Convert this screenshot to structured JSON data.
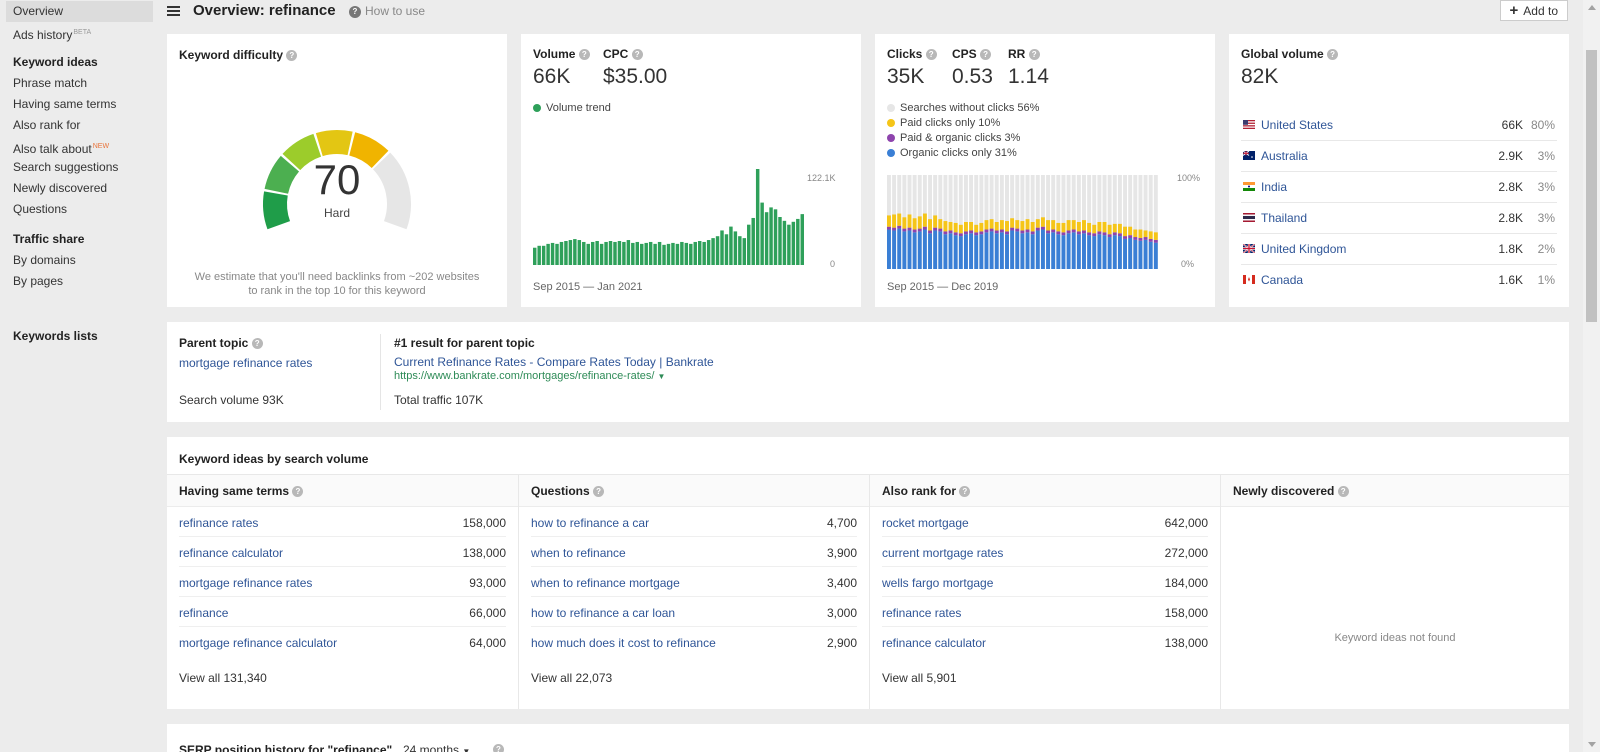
{
  "sidebar": {
    "overview": "Overview",
    "ads_history": "Ads history",
    "ads_history_tag": "BETA",
    "keyword_ideas_head": "Keyword ideas",
    "phrase_match": "Phrase match",
    "having_same_terms": "Having same terms",
    "also_rank_for": "Also rank for",
    "also_talk_about": "Also talk about",
    "also_talk_about_tag": "NEW",
    "search_suggestions": "Search suggestions",
    "newly_discovered": "Newly discovered",
    "questions": "Questions",
    "traffic_share_head": "Traffic share",
    "by_domains": "By domains",
    "by_pages": "By pages",
    "keywords_lists": "Keywords lists"
  },
  "header": {
    "title": "Overview: refinance",
    "help": "How to use",
    "add_to": "Add to"
  },
  "difficulty": {
    "label": "Keyword difficulty",
    "value": "70",
    "rating": "Hard",
    "score_fraction": 0.7,
    "note_line1": "We estimate that you'll need backlinks from ~202 websites",
    "note_line2": "to rank in the top 10 for this keyword"
  },
  "volume": {
    "volume_label": "Volume",
    "volume_value": "66K",
    "cpc_label": "CPC",
    "cpc_value": "$35.00",
    "trend_label": "Volume trend",
    "axis_max": "122.1K",
    "axis_min": "0",
    "date_range": "Sep 2015 — Jan 2021",
    "color": "#2ea05a",
    "trend": [
      0.18,
      0.2,
      0.2,
      0.22,
      0.23,
      0.22,
      0.24,
      0.25,
      0.26,
      0.27,
      0.26,
      0.24,
      0.22,
      0.24,
      0.25,
      0.22,
      0.24,
      0.25,
      0.24,
      0.25,
      0.24,
      0.26,
      0.23,
      0.24,
      0.22,
      0.23,
      0.24,
      0.22,
      0.24,
      0.21,
      0.22,
      0.23,
      0.22,
      0.24,
      0.23,
      0.22,
      0.24,
      0.25,
      0.24,
      0.26,
      0.28,
      0.3,
      0.36,
      0.32,
      0.4,
      0.35,
      0.3,
      0.28,
      0.42,
      0.49,
      1.0,
      0.65,
      0.55,
      0.6,
      0.58,
      0.5,
      0.46,
      0.42,
      0.45,
      0.48,
      0.53
    ]
  },
  "clicks": {
    "clicks_label": "Clicks",
    "clicks_value": "35K",
    "cps_label": "CPS",
    "cps_value": "0.53",
    "rr_label": "RR",
    "rr_value": "1.14",
    "legend": [
      {
        "label": "Searches without clicks 56%",
        "color": "#e6e6e6"
      },
      {
        "label": "Paid clicks only 10%",
        "color": "#f5c518"
      },
      {
        "label": "Paid & organic clicks 3%",
        "color": "#8e44ad"
      },
      {
        "label": "Organic clicks only 31%",
        "color": "#3a7fd5"
      }
    ],
    "axis_max": "100%",
    "axis_min": "0%",
    "date_range": "Sep 2015 — Dec 2019",
    "organic": [
      0.42,
      0.41,
      0.43,
      0.4,
      0.41,
      0.39,
      0.4,
      0.42,
      0.38,
      0.41,
      0.4,
      0.37,
      0.38,
      0.36,
      0.35,
      0.37,
      0.38,
      0.36,
      0.37,
      0.39,
      0.4,
      0.38,
      0.39,
      0.37,
      0.41,
      0.4,
      0.38,
      0.39,
      0.37,
      0.41,
      0.42,
      0.38,
      0.39,
      0.37,
      0.36,
      0.38,
      0.39,
      0.37,
      0.38,
      0.36,
      0.35,
      0.37,
      0.36,
      0.34,
      0.36,
      0.35,
      0.32,
      0.33,
      0.31,
      0.3,
      0.31,
      0.29,
      0.28
    ],
    "paid": [
      0.12,
      0.14,
      0.13,
      0.12,
      0.14,
      0.12,
      0.13,
      0.14,
      0.12,
      0.13,
      0.1,
      0.11,
      0.09,
      0.1,
      0.09,
      0.1,
      0.09,
      0.08,
      0.09,
      0.1,
      0.1,
      0.09,
      0.1,
      0.11,
      0.1,
      0.09,
      0.1,
      0.11,
      0.1,
      0.09,
      0.1,
      0.11,
      0.1,
      0.09,
      0.1,
      0.11,
      0.1,
      0.1,
      0.11,
      0.1,
      0.09,
      0.1,
      0.11,
      0.1,
      0.09,
      0.1,
      0.1,
      0.09,
      0.08,
      0.09,
      0.07,
      0.08,
      0.08
    ],
    "both": [
      0.03,
      0.03,
      0.03,
      0.03,
      0.03,
      0.03,
      0.03,
      0.03,
      0.03,
      0.03,
      0.03,
      0.03,
      0.03,
      0.03,
      0.03,
      0.03,
      0.03,
      0.03,
      0.03,
      0.03,
      0.03,
      0.03,
      0.03,
      0.03,
      0.03,
      0.03,
      0.03,
      0.03,
      0.03,
      0.03,
      0.03,
      0.03,
      0.03,
      0.03,
      0.03,
      0.03,
      0.03,
      0.03,
      0.03,
      0.03,
      0.03,
      0.03,
      0.03,
      0.03,
      0.03,
      0.03,
      0.03,
      0.03,
      0.03,
      0.03,
      0.03,
      0.03,
      0.03
    ]
  },
  "global": {
    "label": "Global volume",
    "value": "82K",
    "countries": [
      {
        "name": "United States",
        "volume": "66K",
        "pct": "80%",
        "flag": "us"
      },
      {
        "name": "Australia",
        "volume": "2.9K",
        "pct": "3%",
        "flag": "au"
      },
      {
        "name": "India",
        "volume": "2.8K",
        "pct": "3%",
        "flag": "in"
      },
      {
        "name": "Thailand",
        "volume": "2.8K",
        "pct": "3%",
        "flag": "th"
      },
      {
        "name": "United Kingdom",
        "volume": "1.8K",
        "pct": "2%",
        "flag": "gb"
      },
      {
        "name": "Canada",
        "volume": "1.6K",
        "pct": "1%",
        "flag": "ca"
      }
    ]
  },
  "parent": {
    "label": "Parent topic",
    "topic": "mortgage refinance rates",
    "search_volume": "Search volume 93K",
    "result_label": "#1 result for parent topic",
    "result_title": "Current Refinance Rates - Compare Rates Today | Bankrate",
    "result_url": "https://www.bankrate.com/mortgages/refinance-rates/",
    "total_traffic": "Total traffic 107K"
  },
  "ideas": {
    "title": "Keyword ideas by search volume",
    "columns": [
      {
        "head": "Having same terms",
        "rows": [
          {
            "kw": "refinance rates",
            "num": "158,000"
          },
          {
            "kw": "refinance calculator",
            "num": "138,000"
          },
          {
            "kw": "mortgage refinance rates",
            "num": "93,000"
          },
          {
            "kw": "refinance",
            "num": "66,000"
          },
          {
            "kw": "mortgage refinance calculator",
            "num": "64,000"
          }
        ],
        "view_all": "View all 131,340"
      },
      {
        "head": "Questions",
        "rows": [
          {
            "kw": "how to refinance a car",
            "num": "4,700"
          },
          {
            "kw": "when to refinance",
            "num": "3,900"
          },
          {
            "kw": "when to refinance mortgage",
            "num": "3,400"
          },
          {
            "kw": "how to refinance a car loan",
            "num": "3,000"
          },
          {
            "kw": "how much does it cost to refinance",
            "num": "2,900"
          }
        ],
        "view_all": "View all 22,073"
      },
      {
        "head": "Also rank for",
        "rows": [
          {
            "kw": "rocket mortgage",
            "num": "642,000"
          },
          {
            "kw": "current mortgage rates",
            "num": "272,000"
          },
          {
            "kw": "wells fargo mortgage",
            "num": "184,000"
          },
          {
            "kw": "refinance rates",
            "num": "158,000"
          },
          {
            "kw": "refinance calculator",
            "num": "138,000"
          }
        ],
        "view_all": "View all 5,901"
      },
      {
        "head": "Newly discovered",
        "rows": [],
        "empty": "Keyword ideas not found"
      }
    ]
  },
  "serp": {
    "title": "SERP position history for \"refinance\"",
    "range": "24 months"
  }
}
